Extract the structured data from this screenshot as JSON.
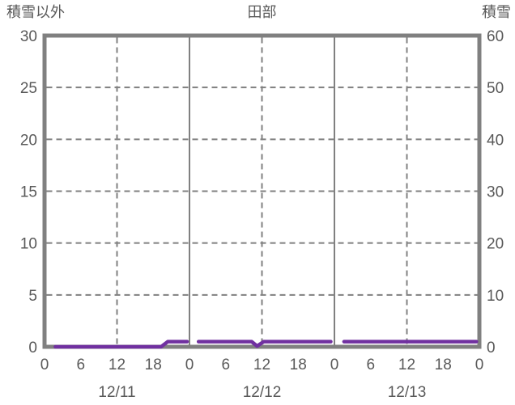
{
  "chart_data": {
    "type": "line",
    "title": "田部",
    "left_axis": {
      "label": "積雪以外",
      "min": 0,
      "max": 30,
      "ticks": [
        30,
        25,
        20,
        15,
        10,
        5,
        0
      ]
    },
    "right_axis": {
      "label": "積雪",
      "min": 0,
      "max": 60,
      "ticks": [
        60,
        50,
        40,
        30,
        20,
        10,
        0
      ]
    },
    "x_axis": {
      "hours_total": 72,
      "hour_labels": [
        "0",
        "6",
        "12",
        "18",
        "0",
        "6",
        "12",
        "18",
        "0",
        "6",
        "12",
        "18",
        "0"
      ],
      "hour_label_positions": [
        0,
        6,
        12,
        18,
        24,
        30,
        36,
        42,
        48,
        54,
        60,
        66,
        72
      ],
      "day_labels": [
        "12/11",
        "12/12",
        "12/13"
      ]
    },
    "grid": {
      "horizontal_dashed_values": [
        5,
        10,
        15,
        20,
        25
      ],
      "vertical_dashed_hours": [
        12,
        36,
        60
      ],
      "vertical_solid_hours": [
        24,
        48
      ]
    },
    "series": [
      {
        "name": "observed-line",
        "color": "#7030A0",
        "axis": "left",
        "segments": [
          [
            [
              1.8,
              0
            ],
            [
              19.3,
              0
            ],
            [
              20.4,
              0.5
            ],
            [
              23.6,
              0.5
            ]
          ],
          [
            [
              25.5,
              0.5
            ],
            [
              34.3,
              0.5
            ],
            [
              35.2,
              0.07
            ],
            [
              36.3,
              0.5
            ],
            [
              47.4,
              0.5
            ]
          ],
          [
            [
              49.6,
              0.5
            ],
            [
              71.5,
              0.5
            ]
          ]
        ]
      }
    ],
    "colors": {
      "frame": "#808080",
      "grid": "#808080",
      "text": "#595959",
      "background": "#ffffff"
    }
  }
}
